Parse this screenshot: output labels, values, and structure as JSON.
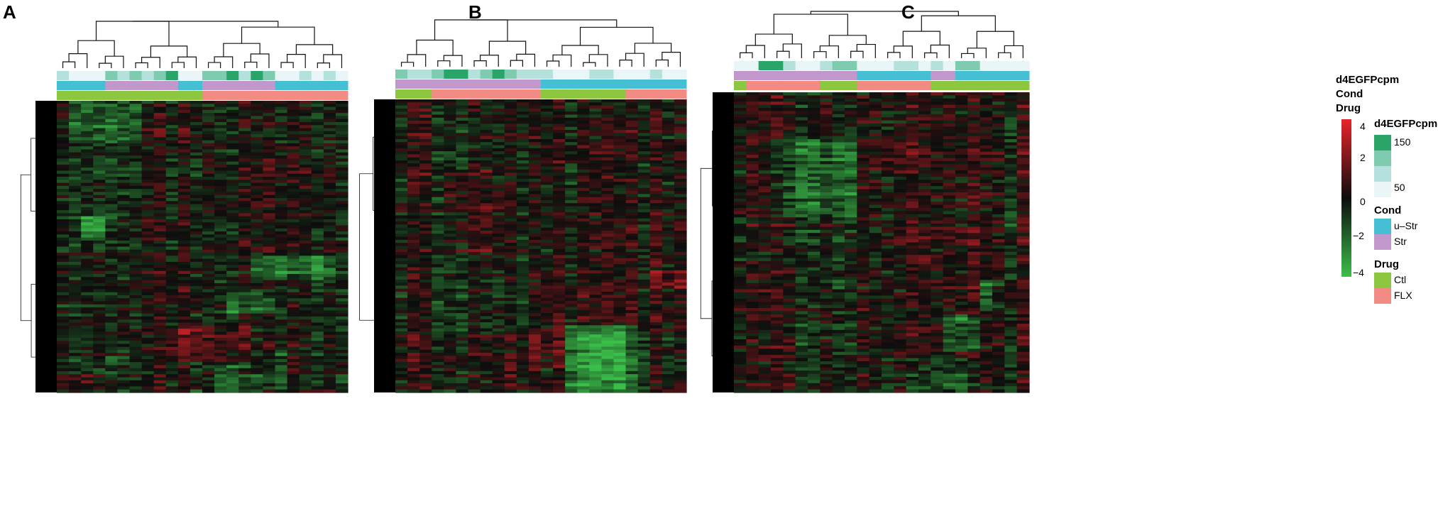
{
  "panels": [
    {
      "letter": "A"
    },
    {
      "letter": "B"
    },
    {
      "letter": "C"
    }
  ],
  "track_labels": [
    "d4EGFPcpm",
    "Cond",
    "Drug"
  ],
  "colors": {
    "high": "#e8232a",
    "mid": "#0d0d0d",
    "low": "#3bbf4a",
    "cond_ustr": "#44bfd3",
    "cond_str": "#c197cc",
    "drug_ctl": "#8dc63f",
    "drug_flx": "#f28b83",
    "egfp_high": "#2aa56a",
    "egfp_mid": "#7fcbb0",
    "egfp_low": "#eaf5f7"
  },
  "legend": {
    "colorbar": {
      "ticks": [
        "4",
        "2",
        "0",
        "−2",
        "−4"
      ]
    },
    "egfp": {
      "title": "d4EGFPcpm",
      "labels": [
        "150",
        "50"
      ]
    },
    "cond": {
      "title": "Cond",
      "items": [
        {
          "label": "u–Str",
          "color": "#44bfd3"
        },
        {
          "label": "Str",
          "color": "#c197cc"
        }
      ]
    },
    "drug": {
      "title": "Drug",
      "items": [
        {
          "label": "Ctl",
          "color": "#8dc63f"
        },
        {
          "label": "FLX",
          "color": "#f28b83"
        }
      ]
    }
  },
  "chart_data": [
    {
      "type": "heatmap",
      "panel": "A",
      "columns": 24,
      "egfp_track": [
        1,
        0,
        0,
        0,
        2,
        1,
        2,
        1,
        2,
        3,
        0,
        0,
        2,
        2,
        3,
        1,
        3,
        2,
        0,
        0,
        1,
        0,
        1,
        0
      ],
      "cond_track": [
        "u-Str",
        "u-Str",
        "u-Str",
        "u-Str",
        "Str",
        "Str",
        "Str",
        "Str",
        "Str",
        "Str",
        "u-Str",
        "u-Str",
        "Str",
        "Str",
        "Str",
        "Str",
        "Str",
        "Str",
        "u-Str",
        "u-Str",
        "u-Str",
        "u-Str",
        "u-Str",
        "u-Str"
      ],
      "drug_track": [
        "Ctl",
        "Ctl",
        "Ctl",
        "Ctl",
        "Ctl",
        "Ctl",
        "Ctl",
        "Ctl",
        "Ctl",
        "Ctl",
        "Ctl",
        "Ctl",
        "FLX",
        "FLX",
        "FLX",
        "FLX",
        "FLX",
        "FLX",
        "FLX",
        "FLX",
        "FLX",
        "FLX",
        "FLX",
        "FLX"
      ],
      "value_range": [
        -4,
        4
      ]
    },
    {
      "type": "heatmap",
      "panel": "B",
      "columns": 24,
      "egfp_track": [
        2,
        1,
        1,
        2,
        3,
        3,
        1,
        2,
        3,
        2,
        1,
        1,
        1,
        0,
        0,
        0,
        1,
        1,
        0,
        0,
        0,
        1,
        0,
        0
      ],
      "cond_track": [
        "Str",
        "Str",
        "Str",
        "Str",
        "Str",
        "Str",
        "Str",
        "Str",
        "Str",
        "Str",
        "Str",
        "Str",
        "u-Str",
        "u-Str",
        "u-Str",
        "u-Str",
        "u-Str",
        "u-Str",
        "u-Str",
        "u-Str",
        "u-Str",
        "u-Str",
        "u-Str",
        "u-Str"
      ],
      "drug_track": [
        "Ctl",
        "Ctl",
        "Ctl",
        "FLX",
        "FLX",
        "FLX",
        "FLX",
        "FLX",
        "FLX",
        "FLX",
        "FLX",
        "FLX",
        "Ctl",
        "Ctl",
        "Ctl",
        "Ctl",
        "Ctl",
        "Ctl",
        "Ctl",
        "FLX",
        "FLX",
        "FLX",
        "FLX",
        "FLX"
      ],
      "value_range": [
        -4,
        4
      ]
    },
    {
      "type": "heatmap",
      "panel": "C",
      "columns": 24,
      "egfp_track": [
        0,
        0,
        3,
        3,
        1,
        0,
        0,
        1,
        2,
        2,
        0,
        0,
        0,
        1,
        1,
        0,
        1,
        0,
        2,
        2,
        0,
        0,
        0,
        0
      ],
      "cond_track": [
        "Str",
        "Str",
        "Str",
        "Str",
        "Str",
        "Str",
        "Str",
        "Str",
        "Str",
        "Str",
        "u-Str",
        "u-Str",
        "u-Str",
        "u-Str",
        "u-Str",
        "u-Str",
        "Str",
        "Str",
        "u-Str",
        "u-Str",
        "u-Str",
        "u-Str",
        "u-Str",
        "u-Str"
      ],
      "drug_track": [
        "Ctl",
        "FLX",
        "FLX",
        "FLX",
        "FLX",
        "FLX",
        "FLX",
        "Ctl",
        "Ctl",
        "Ctl",
        "FLX",
        "FLX",
        "FLX",
        "FLX",
        "FLX",
        "FLX",
        "Ctl",
        "Ctl",
        "Ctl",
        "Ctl",
        "Ctl",
        "Ctl",
        "Ctl",
        "Ctl"
      ],
      "value_range": [
        -4,
        4
      ]
    }
  ]
}
